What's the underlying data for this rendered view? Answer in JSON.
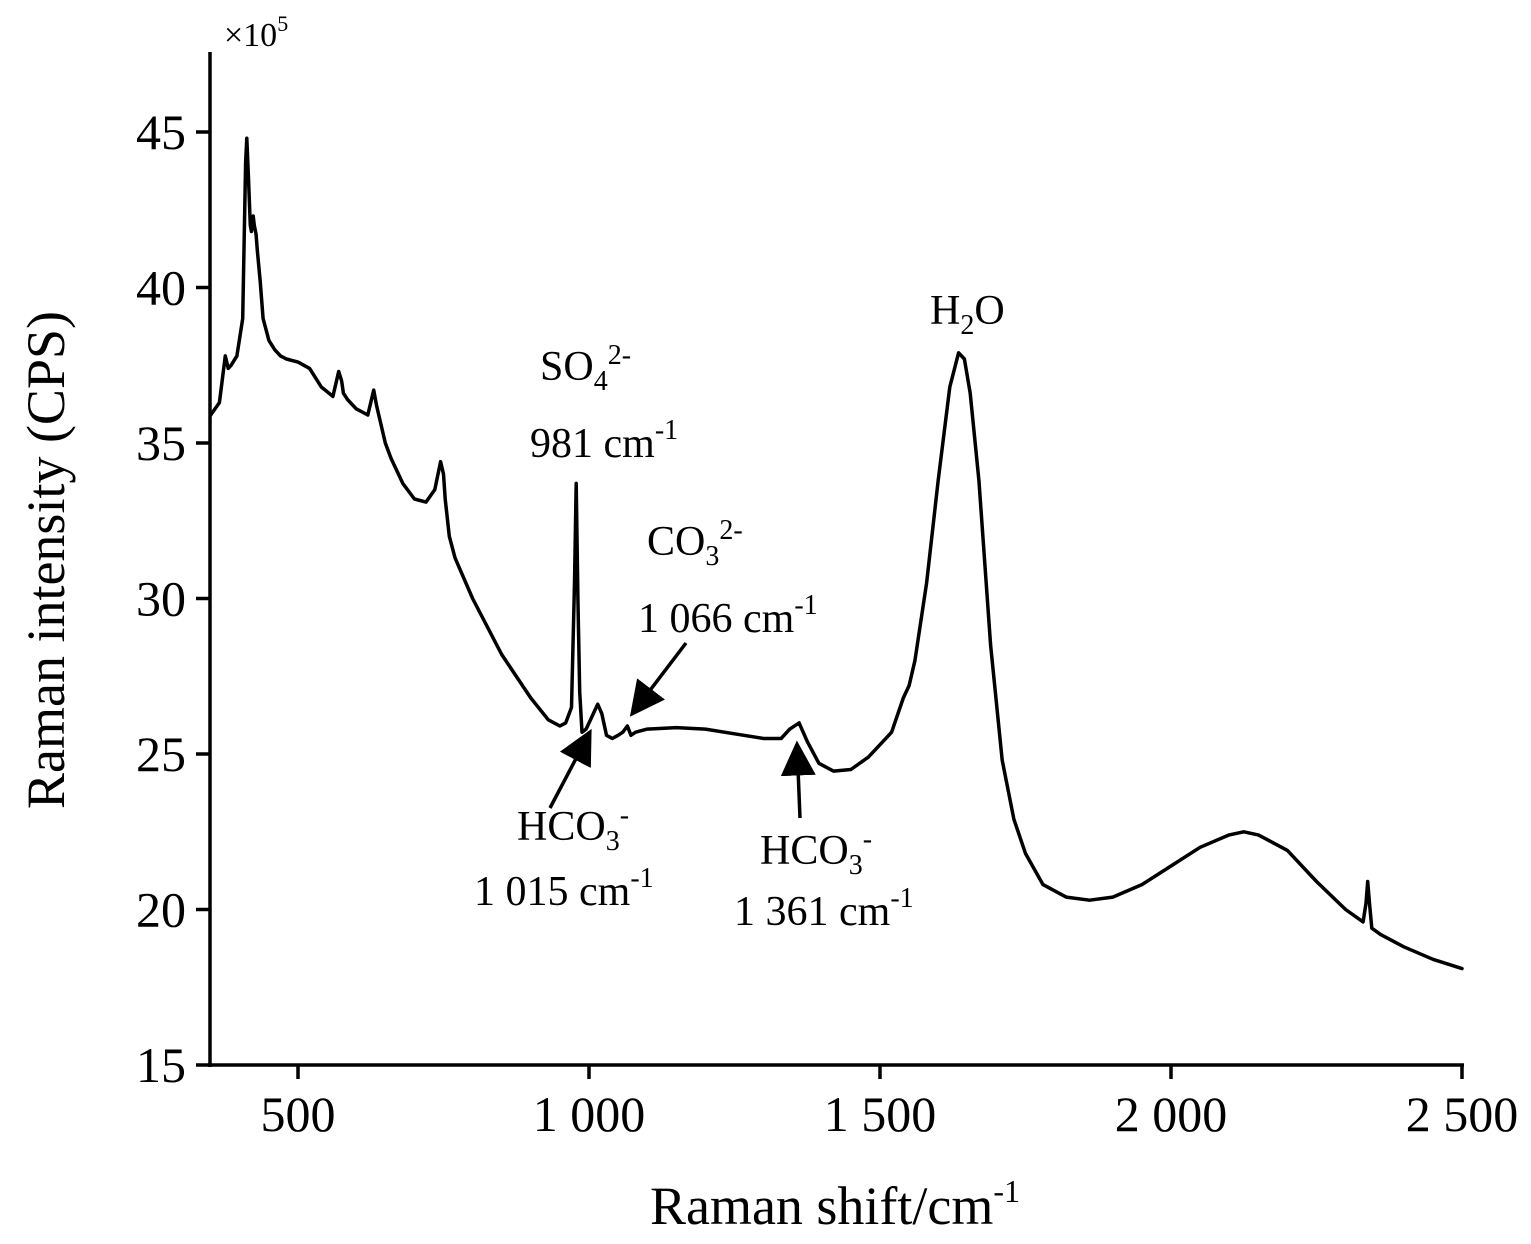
{
  "chart_data": {
    "type": "line",
    "xlabel": "Raman shift/cm",
    "xlabel_sup": "-1",
    "ylabel": "Raman intensity (CPS)",
    "y_multiplier": "×10",
    "y_multiplier_exp": "5",
    "xlim": [
      350,
      2500
    ],
    "ylim": [
      15,
      47.5
    ],
    "x_ticks": [
      500,
      1000,
      1500,
      2000,
      2500
    ],
    "x_tick_labels": [
      "500",
      "1 000",
      "1 500",
      "2 000",
      "2 500"
    ],
    "y_ticks": [
      15,
      20,
      25,
      30,
      35,
      40,
      45
    ],
    "y_tick_labels": [
      "15",
      "20",
      "25",
      "30",
      "35",
      "40",
      "45"
    ],
    "grid": false,
    "legend": "none",
    "series": [
      {
        "x": [
          350,
          365,
          375,
          380,
          385,
          395,
          405,
          410,
          412,
          415,
          418,
          420,
          423,
          425,
          428,
          430,
          435,
          440,
          450,
          460,
          470,
          480,
          500,
          520,
          540,
          560,
          570,
          575,
          578,
          585,
          600,
          620,
          630,
          635,
          640,
          650,
          660,
          680,
          700,
          720,
          735,
          745,
          750,
          753,
          760,
          770,
          800,
          850,
          900,
          930,
          950,
          960,
          970,
          975,
          978,
          981,
          984,
          988,
          995,
          1005,
          1015,
          1022,
          1030,
          1040,
          1050,
          1058,
          1066,
          1072,
          1080,
          1100,
          1150,
          1200,
          1250,
          1300,
          1330,
          1345,
          1361,
          1375,
          1395,
          1420,
          1450,
          1480,
          1500,
          1520,
          1540,
          1550,
          1560,
          1580,
          1600,
          1620,
          1635,
          1645,
          1655,
          1670,
          1690,
          1710,
          1730,
          1750,
          1780,
          1820,
          1860,
          1900,
          1950,
          2000,
          2050,
          2100,
          2125,
          2150,
          2200,
          2250,
          2300,
          2330,
          2335,
          2338,
          2341,
          2345,
          2360,
          2400,
          2450,
          2500
        ],
        "y": [
          35.9,
          36.3,
          37.8,
          37.4,
          37.5,
          37.8,
          39.0,
          44.0,
          44.8,
          43.5,
          42.0,
          41.8,
          42.3,
          42.0,
          41.7,
          41.2,
          40.2,
          39.0,
          38.3,
          38.0,
          37.8,
          37.7,
          37.6,
          37.4,
          36.8,
          36.5,
          37.3,
          37.0,
          36.6,
          36.4,
          36.1,
          35.9,
          36.7,
          36.2,
          35.8,
          35.0,
          34.5,
          33.7,
          33.2,
          33.1,
          33.5,
          34.4,
          34.0,
          33.2,
          32.0,
          31.3,
          30.0,
          28.2,
          26.8,
          26.1,
          25.9,
          26.0,
          26.5,
          30.5,
          33.7,
          30.0,
          27.0,
          25.7,
          25.8,
          26.2,
          26.6,
          26.3,
          25.6,
          25.5,
          25.6,
          25.7,
          25.9,
          25.6,
          25.7,
          25.8,
          25.85,
          25.8,
          25.65,
          25.5,
          25.5,
          25.8,
          26.0,
          25.4,
          24.7,
          24.45,
          24.5,
          24.9,
          25.3,
          25.7,
          26.8,
          27.2,
          28.0,
          30.5,
          33.8,
          36.8,
          37.9,
          37.7,
          36.6,
          33.8,
          28.5,
          24.8,
          22.9,
          21.8,
          20.8,
          20.4,
          20.3,
          20.4,
          20.8,
          21.4,
          22.0,
          22.4,
          22.5,
          22.4,
          21.9,
          20.9,
          20.0,
          19.6,
          20.2,
          20.9,
          20.2,
          19.4,
          19.2,
          18.8,
          18.4,
          18.1
        ]
      }
    ],
    "annotations": [
      {
        "formula": "SO",
        "sub": "4",
        "sup": "2-",
        "label": "981 cm",
        "label_sup": "-1",
        "peak_x": 981,
        "arrow": false
      },
      {
        "formula": "CO",
        "sub": "3",
        "sup": "2-",
        "label": "1 066 cm",
        "label_sup": "-1",
        "peak_x": 1066,
        "arrow": true
      },
      {
        "formula": "HCO",
        "sub": "3",
        "sup": "-",
        "label": "1 015 cm",
        "label_sup": "-1",
        "peak_x": 1015,
        "arrow": true
      },
      {
        "formula": "HCO",
        "sub": "3",
        "sup": "-",
        "label": "1 361 cm",
        "label_sup": "-1",
        "peak_x": 1361,
        "arrow": true
      },
      {
        "formula": "H",
        "sub": "2",
        "tail": "O",
        "peak_x": 1640,
        "arrow": false
      }
    ]
  }
}
